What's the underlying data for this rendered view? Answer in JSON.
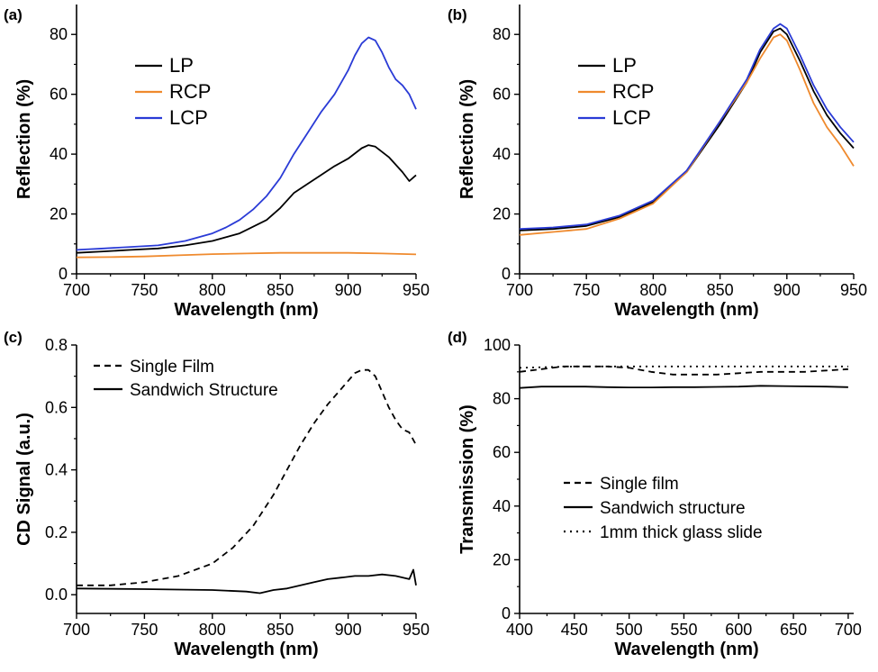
{
  "chart_data": [
    {
      "panel": "(a)",
      "type": "line",
      "xlabel": "Wavelength (nm)",
      "ylabel": "Reflection (%)",
      "xlim": [
        700,
        950
      ],
      "ylim": [
        0,
        90
      ],
      "xticks": [
        700,
        750,
        800,
        850,
        900,
        950
      ],
      "yticks": [
        0,
        20,
        40,
        60,
        80
      ],
      "legend_position": "upper-left",
      "series": [
        {
          "name": "LP",
          "color": "#000000",
          "dash": "solid",
          "x": [
            700,
            720,
            740,
            760,
            780,
            800,
            820,
            840,
            850,
            860,
            870,
            880,
            890,
            900,
            910,
            915,
            920,
            930,
            940,
            945,
            950
          ],
          "y": [
            7,
            7.5,
            8,
            8.5,
            9.5,
            11,
            13.5,
            18,
            22,
            27,
            30,
            33,
            36,
            38.5,
            42,
            43,
            42.5,
            39,
            34,
            31,
            33
          ]
        },
        {
          "name": "RCP",
          "color": "#ef8a2e",
          "dash": "solid",
          "x": [
            700,
            725,
            750,
            775,
            800,
            825,
            850,
            875,
            900,
            925,
            950
          ],
          "y": [
            5.5,
            5.6,
            5.8,
            6.2,
            6.6,
            6.8,
            7.0,
            7.0,
            7.0,
            6.8,
            6.5
          ]
        },
        {
          "name": "LCP",
          "color": "#2a3bd6",
          "dash": "solid",
          "x": [
            700,
            720,
            740,
            760,
            780,
            800,
            810,
            820,
            830,
            840,
            850,
            860,
            870,
            880,
            890,
            900,
            905,
            910,
            915,
            920,
            925,
            930,
            935,
            940,
            945,
            950
          ],
          "y": [
            8,
            8.5,
            9,
            9.5,
            11,
            13.5,
            15.5,
            18,
            21.5,
            26,
            32,
            40,
            47,
            54,
            60,
            68,
            73,
            77,
            79,
            78,
            74,
            69,
            65,
            63,
            60,
            55
          ]
        }
      ]
    },
    {
      "panel": "(b)",
      "type": "line",
      "xlabel": "Wavelength (nm)",
      "ylabel": "Reflection (%)",
      "xlim": [
        700,
        950
      ],
      "ylim": [
        0,
        90
      ],
      "xticks": [
        700,
        750,
        800,
        850,
        900,
        950
      ],
      "yticks": [
        0,
        20,
        40,
        60,
        80
      ],
      "legend_position": "upper-left",
      "series": [
        {
          "name": "LP",
          "color": "#000000",
          "dash": "solid",
          "x": [
            700,
            725,
            750,
            775,
            800,
            825,
            850,
            870,
            880,
            890,
            895,
            900,
            910,
            920,
            930,
            940,
            950
          ],
          "y": [
            14.5,
            15,
            16,
            19,
            24,
            34,
            50,
            64,
            74,
            81,
            82,
            80,
            71,
            61,
            53,
            47,
            42
          ]
        },
        {
          "name": "RCP",
          "color": "#ef8a2e",
          "dash": "solid",
          "x": [
            700,
            725,
            750,
            775,
            800,
            825,
            850,
            870,
            880,
            890,
            895,
            900,
            910,
            920,
            930,
            940,
            950
          ],
          "y": [
            13,
            14,
            15,
            18.5,
            23.5,
            34,
            51,
            64,
            72,
            79,
            80,
            78,
            68,
            57,
            49,
            43,
            36
          ]
        },
        {
          "name": "LCP",
          "color": "#2a3bd6",
          "dash": "solid",
          "x": [
            700,
            725,
            750,
            775,
            800,
            825,
            850,
            870,
            880,
            890,
            895,
            900,
            910,
            920,
            930,
            940,
            950
          ],
          "y": [
            15,
            15.5,
            16.5,
            19.5,
            24.5,
            34.5,
            51,
            65,
            75,
            82,
            83.5,
            82,
            73,
            63,
            55,
            49,
            44
          ]
        }
      ]
    },
    {
      "panel": "(c)",
      "type": "line",
      "xlabel": "Wavelength (nm)",
      "ylabel": "CD Signal (a.u.)",
      "xlim": [
        700,
        950
      ],
      "ylim": [
        -0.06,
        0.8
      ],
      "xticks": [
        700,
        750,
        800,
        850,
        900,
        950
      ],
      "yticks": [
        0.0,
        0.2,
        0.4,
        0.6,
        0.8
      ],
      "legend_position": "upper-left",
      "series": [
        {
          "name": "Single Film",
          "color": "#000000",
          "dash": "dashed",
          "x": [
            700,
            725,
            750,
            775,
            800,
            815,
            830,
            845,
            855,
            865,
            875,
            885,
            895,
            905,
            910,
            915,
            920,
            925,
            930,
            935,
            940,
            945,
            950
          ],
          "y": [
            0.03,
            0.03,
            0.04,
            0.06,
            0.1,
            0.15,
            0.22,
            0.32,
            0.4,
            0.48,
            0.55,
            0.61,
            0.66,
            0.71,
            0.72,
            0.72,
            0.7,
            0.65,
            0.6,
            0.56,
            0.53,
            0.52,
            0.48
          ]
        },
        {
          "name": "Sandwich Structure",
          "color": "#000000",
          "dash": "solid",
          "x": [
            700,
            750,
            800,
            825,
            835,
            845,
            855,
            865,
            875,
            885,
            895,
            905,
            915,
            925,
            935,
            945,
            948,
            950
          ],
          "y": [
            0.02,
            0.018,
            0.015,
            0.01,
            0.005,
            0.015,
            0.02,
            0.03,
            0.04,
            0.05,
            0.055,
            0.06,
            0.06,
            0.065,
            0.06,
            0.05,
            0.08,
            0.03
          ]
        }
      ]
    },
    {
      "panel": "(d)",
      "type": "line",
      "xlabel": "Wavelength (nm)",
      "ylabel": "Transmission (%)",
      "xlim": [
        400,
        705
      ],
      "ylim": [
        0,
        100
      ],
      "xticks": [
        400,
        450,
        500,
        550,
        600,
        650,
        700
      ],
      "yticks": [
        0,
        20,
        40,
        60,
        80,
        100
      ],
      "legend_position": "center",
      "series": [
        {
          "name": "Single film",
          "color": "#000000",
          "dash": "dashed",
          "x": [
            400,
            420,
            440,
            460,
            480,
            500,
            520,
            540,
            560,
            580,
            600,
            620,
            640,
            660,
            680,
            700
          ],
          "y": [
            90,
            91,
            92,
            92,
            92,
            91.5,
            90,
            89,
            89,
            89,
            89.5,
            90,
            90,
            90,
            90.5,
            91
          ]
        },
        {
          "name": "Sandwich structure",
          "color": "#000000",
          "dash": "solid",
          "x": [
            400,
            420,
            440,
            460,
            480,
            500,
            520,
            540,
            560,
            580,
            600,
            620,
            640,
            660,
            680,
            700
          ],
          "y": [
            84,
            84.5,
            84.5,
            84.5,
            84.3,
            84.2,
            84.2,
            84.3,
            84.3,
            84.4,
            84.5,
            84.8,
            84.7,
            84.6,
            84.5,
            84.3
          ]
        },
        {
          "name": "1mm thick glass slide",
          "color": "#000000",
          "dash": "dotted",
          "x": [
            400,
            450,
            500,
            550,
            600,
            650,
            700
          ],
          "y": [
            91.5,
            92,
            92,
            92,
            92,
            92,
            92
          ]
        }
      ]
    }
  ]
}
